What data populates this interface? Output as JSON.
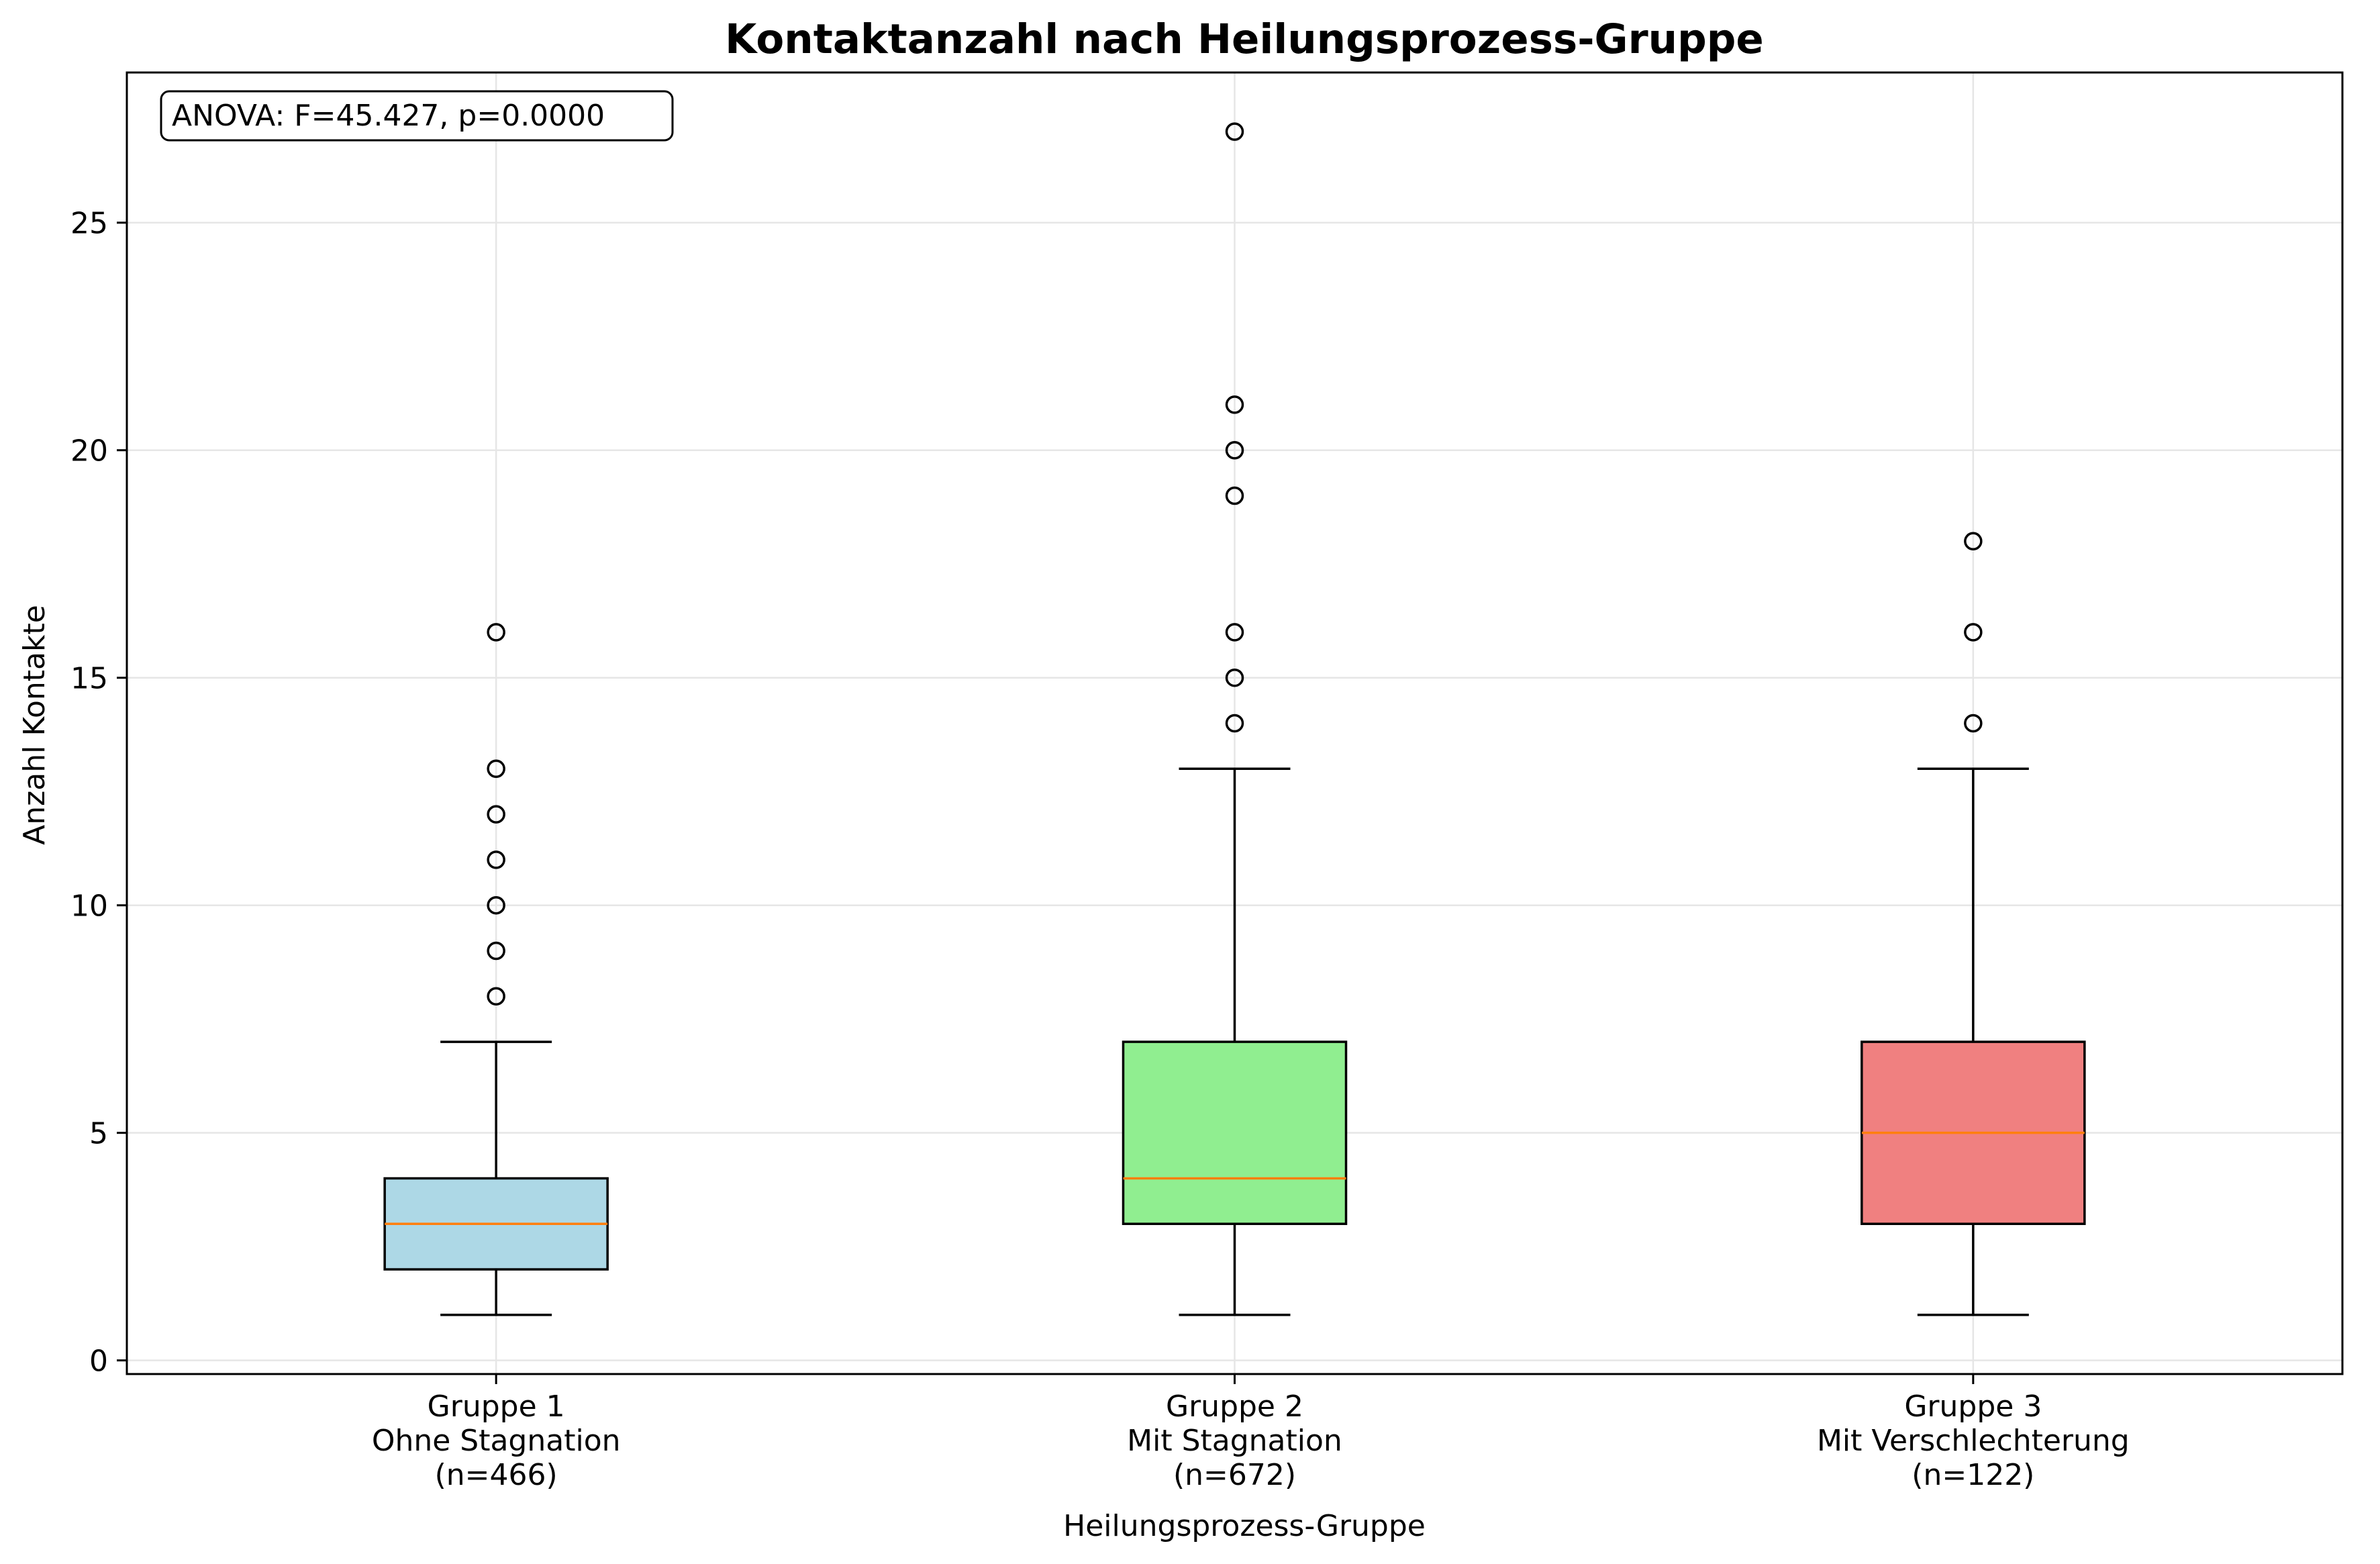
{
  "chart_data": {
    "type": "boxplot",
    "title": "Kontaktanzahl nach Heilungsprozess-Gruppe",
    "xlabel": "Heilungsprozess-Gruppe",
    "ylabel": "Anzahl Kontakte",
    "ylim": [
      -0.3,
      28.3
    ],
    "yticks": [
      0,
      5,
      10,
      15,
      20,
      25
    ],
    "grid": true,
    "annotation": "ANOVA: F=45.427, p=0.0000",
    "median_color": "#ff7f0e",
    "groups": [
      {
        "label_lines": [
          "Gruppe 1",
          "Ohne Stagnation",
          "(n=466)"
        ],
        "color": "#add8e6",
        "whisker_low": 1,
        "q1": 2,
        "median": 3,
        "q3": 4,
        "whisker_high": 7,
        "outliers": [
          8,
          9,
          10,
          11,
          12,
          13,
          16
        ]
      },
      {
        "label_lines": [
          "Gruppe 2",
          "Mit Stagnation",
          "(n=672)"
        ],
        "color": "#90ee90",
        "whisker_low": 1,
        "q1": 3,
        "median": 4,
        "q3": 7,
        "whisker_high": 13,
        "outliers": [
          14,
          15,
          16,
          19,
          20,
          21,
          27
        ]
      },
      {
        "label_lines": [
          "Gruppe 3",
          "Mit Verschlechterung",
          "(n=122)"
        ],
        "color": "#f08080",
        "whisker_low": 1,
        "q1": 3,
        "median": 5,
        "q3": 7,
        "whisker_high": 13,
        "outliers": [
          14,
          16,
          18
        ]
      }
    ]
  }
}
